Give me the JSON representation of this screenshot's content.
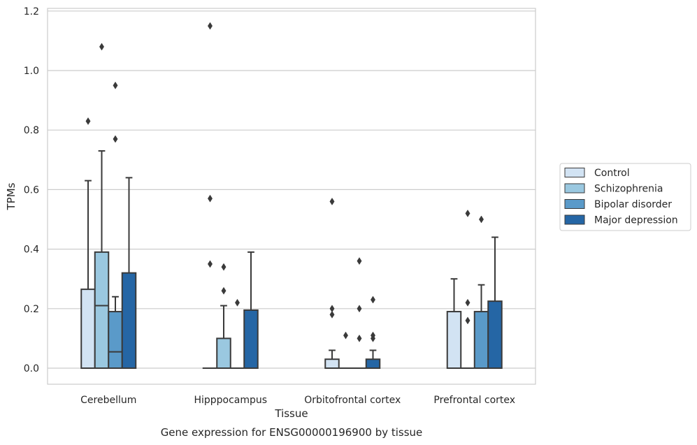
{
  "chart_data": {
    "type": "box",
    "caption": "Gene expression for ENSG00000196900 by tissue",
    "xlabel": "Tissue",
    "ylabel": "TPMs",
    "ylim": [
      -0.055,
      1.21
    ],
    "yticks": [
      0.0,
      0.2,
      0.4,
      0.6,
      0.8,
      1.0,
      1.2
    ],
    "ytick_labels": [
      "0.0",
      "0.2",
      "0.4",
      "0.6",
      "0.8",
      "1.0",
      "1.2"
    ],
    "grid": "horizontal",
    "legend_position": "right",
    "categories": [
      "Cerebellum",
      "Hipppocampus",
      "Orbitofrontal cortex",
      "Prefrontal cortex"
    ],
    "series": [
      {
        "name": "Control",
        "color": "#d2e3f3",
        "boxes": [
          {
            "q1": 0.0,
            "median": 0.0,
            "q3": 0.265,
            "whisker_low": 0.0,
            "whisker_high": 0.63,
            "outliers": [
              0.83
            ]
          },
          {
            "q1": 0.0,
            "median": 0.0,
            "q3": 0.0,
            "whisker_low": 0.0,
            "whisker_high": 0.0,
            "outliers": [
              1.15,
              0.57,
              0.35
            ]
          },
          {
            "q1": 0.0,
            "median": 0.0,
            "q3": 0.03,
            "whisker_low": 0.0,
            "whisker_high": 0.06,
            "outliers": [
              0.56,
              0.2,
              0.18
            ]
          },
          {
            "q1": 0.0,
            "median": 0.0,
            "q3": 0.19,
            "whisker_low": 0.0,
            "whisker_high": 0.3,
            "outliers": []
          }
        ]
      },
      {
        "name": "Schizophrenia",
        "color": "#9ac8e0",
        "boxes": [
          {
            "q1": 0.0,
            "median": 0.21,
            "q3": 0.39,
            "whisker_low": 0.0,
            "whisker_high": 0.73,
            "outliers": [
              1.08
            ]
          },
          {
            "q1": 0.0,
            "median": 0.0,
            "q3": 0.1,
            "whisker_low": 0.0,
            "whisker_high": 0.21,
            "outliers": [
              0.34,
              0.26
            ]
          },
          {
            "q1": 0.0,
            "median": 0.0,
            "q3": 0.0,
            "whisker_low": 0.0,
            "whisker_high": 0.0,
            "outliers": [
              0.11
            ]
          },
          {
            "q1": 0.0,
            "median": 0.0,
            "q3": 0.0,
            "whisker_low": 0.0,
            "whisker_high": 0.0,
            "outliers": [
              0.52,
              0.22,
              0.16
            ]
          }
        ]
      },
      {
        "name": "Bipolar disorder",
        "color": "#5a9ac9",
        "boxes": [
          {
            "q1": 0.0,
            "median": 0.055,
            "q3": 0.19,
            "whisker_low": 0.0,
            "whisker_high": 0.24,
            "outliers": [
              0.95,
              0.77
            ]
          },
          {
            "q1": 0.0,
            "median": 0.0,
            "q3": 0.0,
            "whisker_low": 0.0,
            "whisker_high": 0.0,
            "outliers": [
              0.22
            ]
          },
          {
            "q1": 0.0,
            "median": 0.0,
            "q3": 0.0,
            "whisker_low": 0.0,
            "whisker_high": 0.0,
            "outliers": [
              0.36,
              0.2,
              0.1
            ]
          },
          {
            "q1": 0.0,
            "median": 0.0,
            "q3": 0.19,
            "whisker_low": 0.0,
            "whisker_high": 0.28,
            "outliers": [
              0.5
            ]
          }
        ]
      },
      {
        "name": "Major depression",
        "color": "#2566a5",
        "boxes": [
          {
            "q1": 0.0,
            "median": 0.0,
            "q3": 0.32,
            "whisker_low": 0.0,
            "whisker_high": 0.64,
            "outliers": []
          },
          {
            "q1": 0.0,
            "median": 0.0,
            "q3": 0.195,
            "whisker_low": 0.0,
            "whisker_high": 0.39,
            "outliers": []
          },
          {
            "q1": 0.0,
            "median": 0.0,
            "q3": 0.03,
            "whisker_low": 0.0,
            "whisker_high": 0.06,
            "outliers": [
              0.23,
              0.11,
              0.1
            ]
          },
          {
            "q1": 0.0,
            "median": 0.0,
            "q3": 0.225,
            "whisker_low": 0.0,
            "whisker_high": 0.44,
            "outliers": []
          }
        ]
      }
    ]
  }
}
